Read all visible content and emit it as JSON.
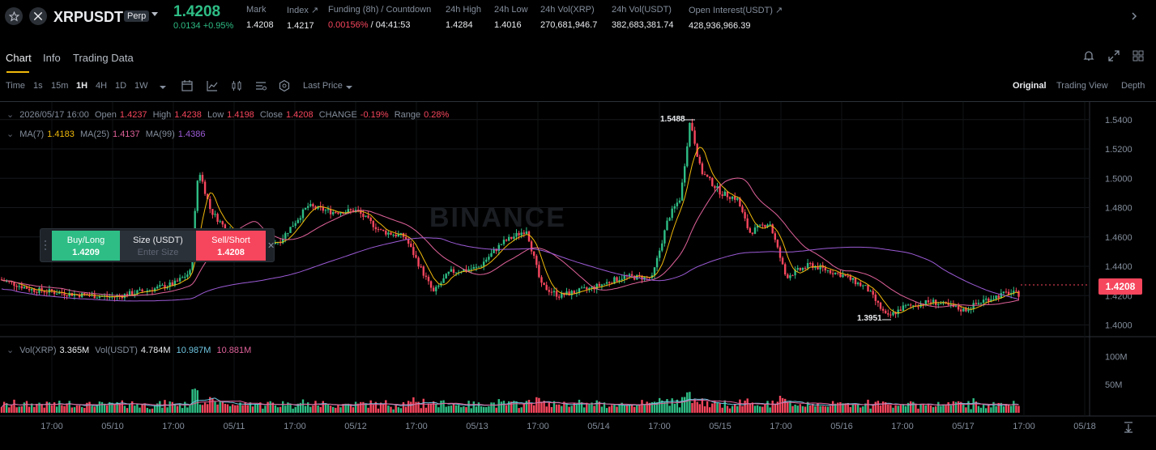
{
  "header": {
    "symbol": "XRPUSDT",
    "badge": "Perp",
    "last_price": "1.4208",
    "change": "0.0134 +0.95%",
    "stats": [
      {
        "label": "Mark",
        "value": "1.4208"
      },
      {
        "label": "Index ↗",
        "value": "1.4217"
      },
      {
        "label": "Funding (8h) / Countdown",
        "value_rate": "0.00156%",
        "value_time": "/ 04:41:53"
      },
      {
        "label": "24h High",
        "value": "1.4284"
      },
      {
        "label": "24h Low",
        "value": "1.4016"
      },
      {
        "label": "24h Vol(XRP)",
        "value": "270,681,946.7"
      },
      {
        "label": "24h Vol(USDT)",
        "value": "382,683,381.74"
      },
      {
        "label": "Open Interest(USDT) ↗",
        "value": "428,936,966.39"
      }
    ]
  },
  "tabs": [
    "Chart",
    "Info",
    "Trading Data"
  ],
  "toolbar": {
    "intervals": [
      "Time",
      "1s",
      "15m",
      "1H",
      "4H",
      "1D",
      "1W"
    ],
    "active_interval": "1H",
    "price_type": "Last Price",
    "views": [
      "Original",
      "Trading View",
      "Depth"
    ],
    "active_view": "Original"
  },
  "ohlc": {
    "date": "2026/05/17 16:00",
    "open_label": "Open",
    "open": "1.4237",
    "high_label": "High",
    "high": "1.4238",
    "low_label": "Low",
    "low": "1.4198",
    "close_label": "Close",
    "close": "1.4208",
    "change_label": "CHANGE",
    "change": "-0.19%",
    "range_label": "Range",
    "range": "0.28%"
  },
  "ma": {
    "ma7_label": "MA(7)",
    "ma7": "1.4183",
    "ma25_label": "MA(25)",
    "ma25": "1.4137",
    "ma99_label": "MA(99)",
    "ma99": "1.4386"
  },
  "volume": {
    "vol_xrp_label": "Vol(XRP)",
    "vol_xrp": "3.365M",
    "vol_usdt_label": "Vol(USDT)",
    "vol_usdt": "4.784M",
    "ma1": "10.987M",
    "ma2": "10.881M"
  },
  "order_panel": {
    "buy_label": "Buy/Long",
    "buy_price": "1.4209",
    "size_label": "Size (USDT)",
    "size_placeholder": "Enter Size",
    "sell_label": "Sell/Short",
    "sell_price": "1.4208"
  },
  "watermark": "BINANCE",
  "chart_data": {
    "type": "candlestick",
    "price_axis": [
      "1.5400",
      "1.5200",
      "1.5000",
      "1.4800",
      "1.4600",
      "1.4400",
      "1.4200",
      "1.4000"
    ],
    "price_range": [
      1.392,
      1.552
    ],
    "volume_axis": [
      "100M",
      "50M"
    ],
    "time_axis": [
      "17:00",
      "05/10",
      "17:00",
      "05/11",
      "17:00",
      "05/12",
      "17:00",
      "05/13",
      "17:00",
      "05/14",
      "17:00",
      "05/15",
      "17:00",
      "05/16",
      "17:00",
      "05/17",
      "17:00",
      "05/18"
    ],
    "current_price": "1.4208",
    "high_marker": "1.5488",
    "low_marker": "1.3951",
    "colors": {
      "up": "#2EBD85",
      "down": "#F6465D",
      "ma7": "#F0B90B",
      "ma25": "#E0629A",
      "ma99": "#9C5BD6",
      "vol_ma1": "#6FC6E2",
      "vol_ma2": "#E0629A"
    }
  }
}
